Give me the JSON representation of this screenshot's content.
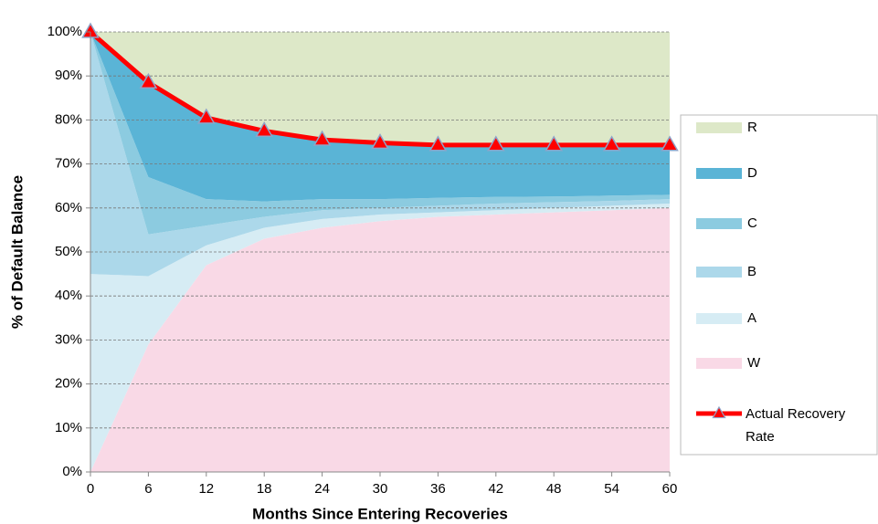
{
  "chart_data": {
    "type": "area",
    "x_label": "Months Since Entering Recoveries",
    "y_label": "% of Default Balance",
    "x": [
      0,
      6,
      12,
      18,
      24,
      30,
      36,
      42,
      48,
      54,
      60
    ],
    "xlim": [
      0,
      60
    ],
    "xticks": [
      0,
      6,
      12,
      18,
      24,
      30,
      36,
      42,
      48,
      54,
      60
    ],
    "ylim": [
      0,
      100
    ],
    "yticks": [
      {
        "value": 0,
        "label": "0%"
      },
      {
        "value": 10,
        "label": "10%"
      },
      {
        "value": 20,
        "label": "20%"
      },
      {
        "value": 30,
        "label": "30%"
      },
      {
        "value": 40,
        "label": "40%"
      },
      {
        "value": 50,
        "label": "50%"
      },
      {
        "value": 60,
        "label": "60%"
      },
      {
        "value": 70,
        "label": "70%"
      },
      {
        "value": 80,
        "label": "80%"
      },
      {
        "value": 90,
        "label": "90%"
      },
      {
        "value": 100,
        "label": "100%"
      }
    ],
    "grid": true,
    "legend": "right",
    "series": [
      {
        "name": "W",
        "color": "#f9d9e6",
        "values": [
          0,
          29,
          47,
          53,
          55.5,
          57,
          58,
          58.5,
          59,
          59.5,
          60
        ]
      },
      {
        "name": "A",
        "color": "#d6ecf4",
        "values": [
          45,
          15.5,
          4.5,
          2.5,
          2,
          1.5,
          1,
          1,
          1,
          1,
          1
        ]
      },
      {
        "name": "B",
        "color": "#acd8ea",
        "values": [
          55,
          9.5,
          4.5,
          2.5,
          2,
          1.5,
          1.5,
          1.5,
          1.3,
          1.1,
          1
        ]
      },
      {
        "name": "C",
        "color": "#8ccbe0",
        "values": [
          0,
          13,
          6,
          3.5,
          2.5,
          2,
          1.8,
          1.5,
          1.3,
          1.2,
          1
        ]
      },
      {
        "name": "D",
        "color": "#5ab4d6",
        "values": [
          0,
          21.5,
          18.5,
          16,
          14,
          13,
          12.2,
          11.8,
          11.7,
          11.5,
          11.3
        ]
      },
      {
        "name": "R",
        "color": "#dde8c8",
        "values": [
          0,
          11.5,
          19.5,
          22.5,
          24,
          25,
          25.5,
          25.7,
          25.7,
          25.7,
          25.7
        ]
      },
      {
        "name": "Actual Recovery Rate",
        "type": "line",
        "color": "#ff0000",
        "values": [
          100,
          88.5,
          80.5,
          77.5,
          75.5,
          74.8,
          74.3,
          74.3,
          74.3,
          74.3,
          74.3
        ]
      }
    ]
  }
}
